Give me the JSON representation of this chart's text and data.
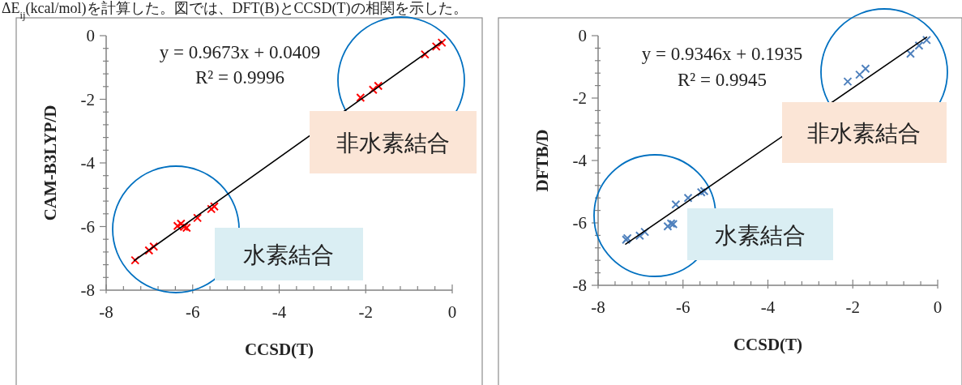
{
  "chart_data": [
    {
      "type": "scatter",
      "xlabel": "CCSD(T)",
      "ylabel": "CAM-B3LYP/D",
      "xlim": [
        -8,
        0
      ],
      "ylim": [
        -8,
        0
      ],
      "xticks": [
        -8,
        {
          "value": -7.6,
          "label": null
        },
        {
          "value": -7.2,
          "label": null
        },
        {
          "value": -6.8,
          "label": null
        },
        {
          "value": -6.4,
          "label": null
        },
        -6,
        {
          "value": -5.6,
          "label": null
        },
        {
          "value": -5.2,
          "label": null
        },
        {
          "value": -4.8,
          "label": null
        },
        {
          "value": -4.4,
          "label": null
        },
        -4,
        {
          "value": -3.6,
          "label": null
        },
        {
          "value": -3.2,
          "label": null
        },
        {
          "value": -2.8,
          "label": null
        },
        {
          "value": -2.4,
          "label": null
        },
        -2,
        {
          "value": -1.6,
          "label": null
        },
        {
          "value": -1.2,
          "label": null
        },
        {
          "value": -0.8,
          "label": null
        },
        {
          "value": -0.4,
          "label": null
        },
        0
      ],
      "yticks": [
        -8,
        {
          "value": -7.6,
          "label": null
        },
        {
          "value": -7.2,
          "label": null
        },
        {
          "value": -6.8,
          "label": null
        },
        {
          "value": -6.4,
          "label": null
        },
        -6,
        {
          "value": -5.6,
          "label": null
        },
        {
          "value": -5.2,
          "label": null
        },
        {
          "value": -4.8,
          "label": null
        },
        {
          "value": -4.4,
          "label": null
        },
        -4,
        {
          "value": -3.6,
          "label": null
        },
        {
          "value": -3.2,
          "label": null
        },
        {
          "value": -2.8,
          "label": null
        },
        {
          "value": -2.4,
          "label": null
        },
        -2,
        {
          "value": -1.6,
          "label": null
        },
        {
          "value": -1.2,
          "label": null
        },
        {
          "value": -0.8,
          "label": null
        },
        {
          "value": -0.4,
          "label": null
        },
        0
      ],
      "series": [
        {
          "marker": "cross",
          "color": "#ff0000",
          "x": [
            -7.33,
            -7.01,
            -6.9,
            -6.35,
            -6.27,
            -6.2,
            -6.14,
            -5.89,
            -5.57,
            -5.5,
            -2.12,
            -1.83,
            -1.71,
            -0.63,
            -0.37,
            -0.24
          ],
          "values": [
            -7.06,
            -6.75,
            -6.63,
            -5.98,
            -5.91,
            -6.01,
            -6.04,
            -5.73,
            -5.45,
            -5.37,
            -1.95,
            -1.7,
            -1.58,
            -0.59,
            -0.34,
            -0.22
          ]
        },
        {
          "type": "line",
          "color": "#000000",
          "x": [
            -7.35,
            -0.24
          ],
          "values": [
            -7.07,
            -0.19
          ]
        }
      ],
      "annotations": [
        "y = 0.9673x + 0.0409",
        "R² = 0.9996",
        "非水素結合",
        "水素結合",
        "ΔE$_{ij}$(kcal/mol)を計算した。図では、DFT(B)とCCSD(T)の相関を示した。"
      ]
    },
    {
      "type": "scatter",
      "xlabel": "CCSD(T)",
      "ylabel": "DFTB/D",
      "xlim": [
        -8,
        0
      ],
      "ylim": [
        -8,
        0
      ],
      "xticks": [
        -8,
        {
          "value": -7.6,
          "label": null
        },
        {
          "value": -7.2,
          "label": null
        },
        {
          "value": -6.8,
          "label": null
        },
        {
          "value": -6.4,
          "label": null
        },
        -6,
        {
          "value": -5.6,
          "label": null
        },
        {
          "value": -5.2,
          "label": null
        },
        {
          "value": -4.8,
          "label": null
        },
        {
          "value": -4.4,
          "label": null
        },
        -4,
        {
          "value": -3.6,
          "label": null
        },
        {
          "value": -3.2,
          "label": null
        },
        {
          "value": -2.8,
          "label": null
        },
        {
          "value": -2.4,
          "label": null
        },
        -2,
        {
          "value": -1.6,
          "label": null
        },
        {
          "value": -1.2,
          "label": null
        },
        {
          "value": -0.8,
          "label": null
        },
        {
          "value": -0.4,
          "label": null
        },
        0
      ],
      "yticks": [
        -8,
        {
          "value": -7.6,
          "label": null
        },
        {
          "value": -7.2,
          "label": null
        },
        {
          "value": -6.8,
          "label": null
        },
        {
          "value": -6.4,
          "label": null
        },
        -6,
        {
          "value": -5.6,
          "label": null
        },
        {
          "value": -5.2,
          "label": null
        },
        {
          "value": -4.8,
          "label": null
        },
        {
          "value": -4.4,
          "label": null
        },
        -4,
        {
          "value": -3.6,
          "label": null
        },
        {
          "value": -3.2,
          "label": null
        },
        {
          "value": -2.8,
          "label": null
        },
        {
          "value": -2.4,
          "label": null
        },
        -2,
        {
          "value": -1.6,
          "label": null
        },
        {
          "value": -1.2,
          "label": null
        },
        {
          "value": -0.8,
          "label": null
        },
        {
          "value": -0.4,
          "label": null
        },
        0
      ],
      "series": [
        {
          "marker": "cross",
          "color": "#4f81bd",
          "x": [
            -7.34,
            -7.31,
            -7.02,
            -6.9,
            -6.36,
            -6.28,
            -6.23,
            -6.17,
            -5.88,
            -5.57,
            -5.5,
            -2.12,
            -1.84,
            -1.7,
            -0.64,
            -0.44,
            -0.26
          ],
          "values": [
            -6.54,
            -6.49,
            -6.41,
            -6.29,
            -6.11,
            -6.02,
            -6.04,
            -5.41,
            -5.2,
            -5.02,
            -4.98,
            -1.47,
            -1.25,
            -1.06,
            -0.58,
            -0.32,
            -0.14
          ]
        },
        {
          "type": "line",
          "color": "#000000",
          "x": [
            -7.35,
            -0.26
          ],
          "values": [
            -6.68,
            -0.05
          ]
        }
      ],
      "annotations": [
        "y = 0.9346x + 0.1935",
        "R² = 0.9945",
        "非水素結合",
        "水素結合"
      ]
    }
  ]
}
